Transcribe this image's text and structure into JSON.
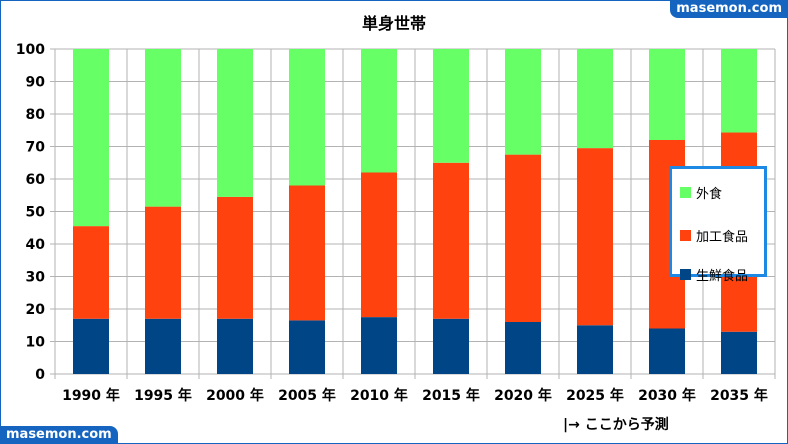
{
  "watermark": "masemon.com",
  "note": "|→ ここから予測",
  "chart_data": {
    "type": "bar",
    "stacked": true,
    "title": "単身世帯",
    "categories": [
      "1990 年",
      "1995 年",
      "2000 年",
      "2005 年",
      "2010 年",
      "2015 年",
      "2020 年",
      "2025 年",
      "2030 年",
      "2035 年"
    ],
    "series": [
      {
        "name": "生鮮食品",
        "color": "#004586",
        "values": [
          17,
          17,
          17,
          16.5,
          17.5,
          17,
          16,
          15,
          14,
          13
        ]
      },
      {
        "name": "加工食品",
        "color": "#ff420e",
        "values": [
          28.5,
          34.5,
          37.5,
          41.5,
          44.5,
          48,
          51.5,
          54.5,
          58,
          61.3
        ]
      },
      {
        "name": "外食",
        "color": "#66ff66",
        "values": [
          54.5,
          48.5,
          45.5,
          42,
          38,
          35,
          32.5,
          30.5,
          28,
          25.7
        ]
      }
    ],
    "ylim": [
      0,
      100
    ],
    "yticks": [
      0,
      10,
      20,
      30,
      40,
      50,
      60,
      70,
      80,
      90,
      100
    ],
    "grid": true,
    "legend": "right",
    "legend_order": [
      "外食",
      "加工食品",
      "生鮮食品"
    ]
  }
}
